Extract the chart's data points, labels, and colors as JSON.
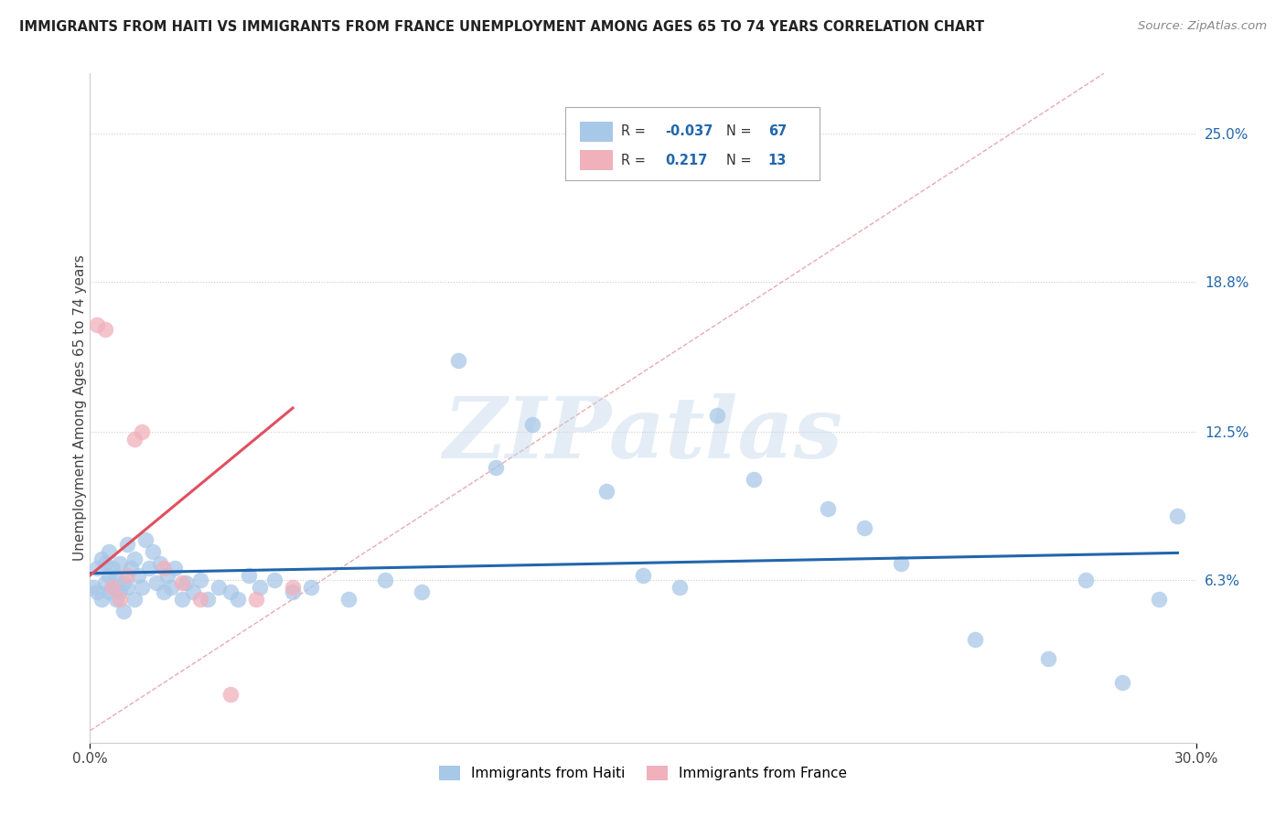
{
  "title": "IMMIGRANTS FROM HAITI VS IMMIGRANTS FROM FRANCE UNEMPLOYMENT AMONG AGES 65 TO 74 YEARS CORRELATION CHART",
  "source": "Source: ZipAtlas.com",
  "ylabel": "Unemployment Among Ages 65 to 74 years",
  "xlim": [
    0.0,
    0.3
  ],
  "ylim": [
    -0.005,
    0.275
  ],
  "haiti_color": "#a8c8e8",
  "france_color": "#f0b0bc",
  "haiti_line_color": "#2166ac",
  "france_line_color": "#e05060",
  "diagonal_color": "#e8a0a8",
  "R_haiti": -0.037,
  "N_haiti": 67,
  "R_france": 0.217,
  "N_france": 13,
  "watermark": "ZIPatlas",
  "background_color": "#ffffff",
  "haiti_x": [
    0.001,
    0.002,
    0.002,
    0.003,
    0.003,
    0.004,
    0.004,
    0.005,
    0.005,
    0.005,
    0.006,
    0.006,
    0.007,
    0.007,
    0.008,
    0.008,
    0.009,
    0.009,
    0.01,
    0.01,
    0.011,
    0.012,
    0.012,
    0.013,
    0.014,
    0.015,
    0.016,
    0.017,
    0.018,
    0.019,
    0.02,
    0.021,
    0.022,
    0.023,
    0.025,
    0.026,
    0.028,
    0.03,
    0.032,
    0.035,
    0.038,
    0.04,
    0.043,
    0.046,
    0.05,
    0.055,
    0.06,
    0.07,
    0.08,
    0.09,
    0.1,
    0.11,
    0.12,
    0.14,
    0.15,
    0.16,
    0.17,
    0.18,
    0.2,
    0.21,
    0.22,
    0.24,
    0.26,
    0.27,
    0.28,
    0.29,
    0.295
  ],
  "haiti_y": [
    0.06,
    0.058,
    0.068,
    0.055,
    0.072,
    0.062,
    0.07,
    0.058,
    0.065,
    0.075,
    0.06,
    0.068,
    0.055,
    0.064,
    0.058,
    0.07,
    0.062,
    0.05,
    0.06,
    0.078,
    0.068,
    0.055,
    0.072,
    0.065,
    0.06,
    0.08,
    0.068,
    0.075,
    0.062,
    0.07,
    0.058,
    0.065,
    0.06,
    0.068,
    0.055,
    0.062,
    0.058,
    0.063,
    0.055,
    0.06,
    0.058,
    0.055,
    0.065,
    0.06,
    0.063,
    0.058,
    0.06,
    0.055,
    0.063,
    0.058,
    0.155,
    0.11,
    0.128,
    0.1,
    0.065,
    0.06,
    0.132,
    0.105,
    0.093,
    0.085,
    0.07,
    0.038,
    0.03,
    0.063,
    0.02,
    0.055,
    0.09
  ],
  "france_x": [
    0.002,
    0.004,
    0.006,
    0.008,
    0.01,
    0.012,
    0.014,
    0.02,
    0.025,
    0.03,
    0.038,
    0.045,
    0.055
  ],
  "france_y": [
    0.17,
    0.168,
    0.06,
    0.055,
    0.065,
    0.122,
    0.125,
    0.068,
    0.062,
    0.055,
    0.015,
    0.055,
    0.06
  ],
  "ytick_positions": [
    0.063,
    0.125,
    0.188,
    0.25
  ],
  "ytick_labels": [
    "6.3%",
    "12.5%",
    "18.8%",
    "25.0%"
  ]
}
